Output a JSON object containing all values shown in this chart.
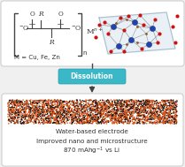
{
  "bg_color": "#f0f0f0",
  "top_box_edge": "#c8c8c8",
  "dissolution_box_color": "#3ab8c8",
  "dissolution_box_edge": "#2a9aaa",
  "dissolution_text": "Dissolution",
  "dissolution_text_color": "white",
  "electrode_orange": "#d94f10",
  "electrode_black": "#111111",
  "bottom_box_edge": "#c8c8c8",
  "label1": "Water-based electrode",
  "label2": "Improved nano and microstructure",
  "label3": "870 mAhg",
  "label3_sup": "-1",
  "label3_end": " vs Li",
  "label_color": "#333333",
  "label_fontsize": 5.2,
  "chem_text": "M = Cu, Fe, Zn",
  "arrow_color": "#444444",
  "fig_width": 2.09,
  "fig_height": 1.89,
  "dpi": 100
}
